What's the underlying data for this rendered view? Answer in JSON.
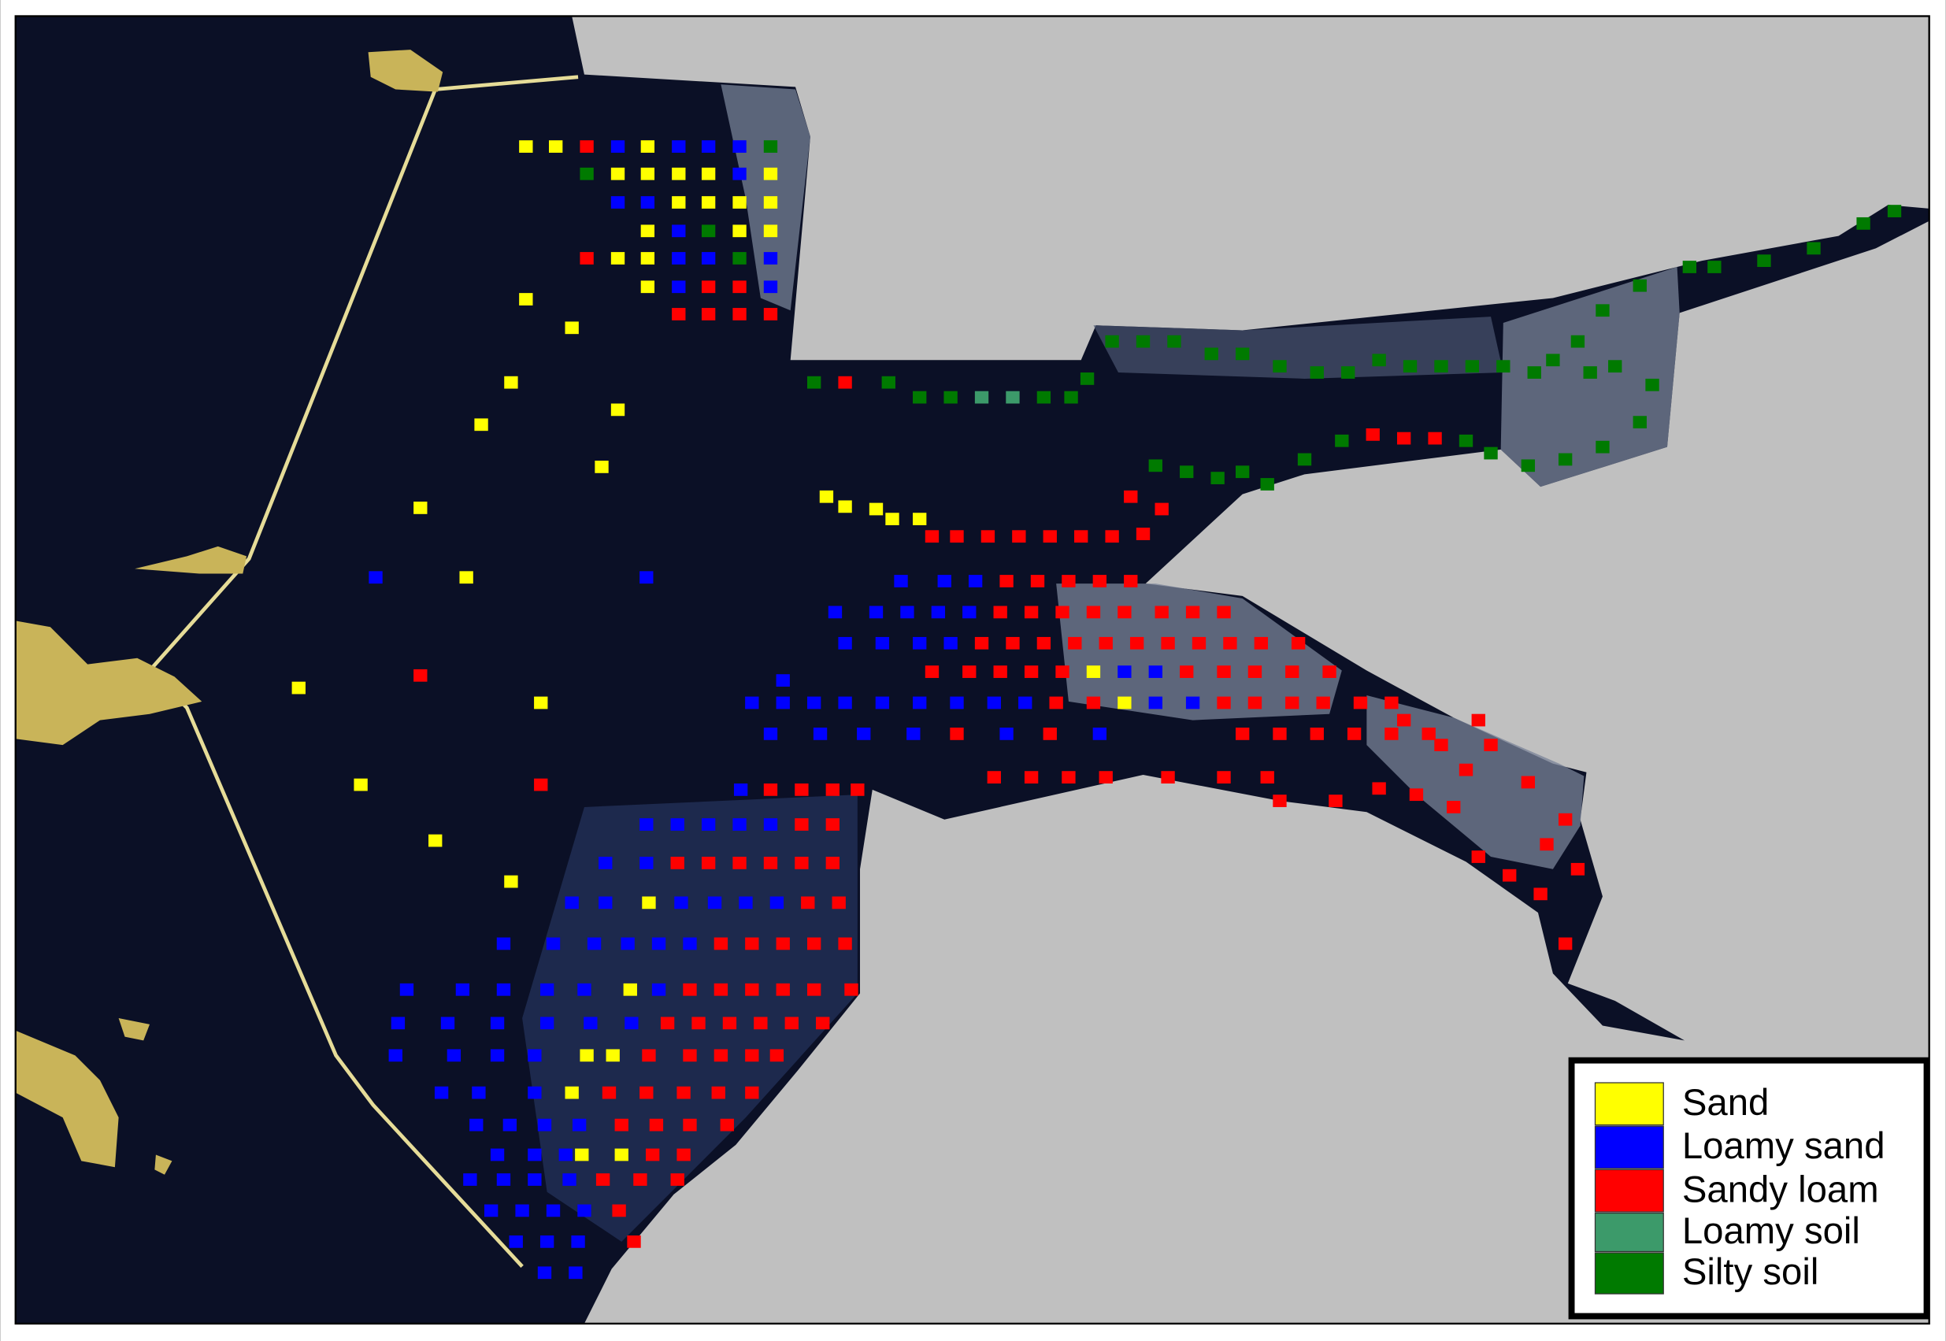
{
  "legend": {
    "items": [
      {
        "label": "Sand",
        "color": "#ffff00"
      },
      {
        "label": "Loamy sand",
        "color": "#0000ff"
      },
      {
        "label": "Sandy loam",
        "color": "#ff0000"
      },
      {
        "label": "Loamy soil",
        "color": "#3c9a6a"
      },
      {
        "label": "Silty soil",
        "color": "#007a00"
      }
    ]
  }
}
